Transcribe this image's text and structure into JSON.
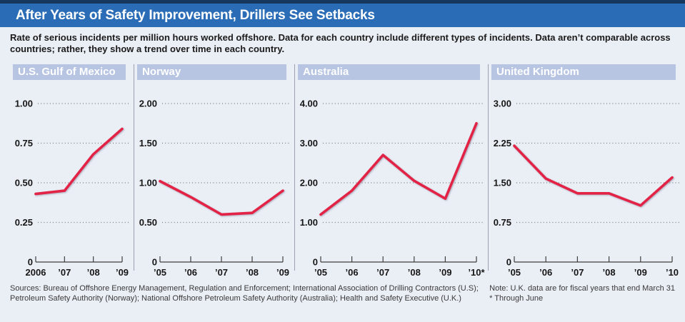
{
  "header": {
    "title": "After Years of Safety Improvement, Drillers See Setbacks",
    "subtitle": "Rate of serious incidents per million hours worked offshore. Data for each country include different types of incidents. Data aren’t comparable across countries; rather, they show a trend over time in each country."
  },
  "colors": {
    "top_strip": "#16375e",
    "title_bar": "#2a6db6",
    "panel_header_bg": "#b7c5e2",
    "background": "#eaeef5",
    "line": "#e32345",
    "divider": "#9aa2ae"
  },
  "chart_data": [
    {
      "type": "line",
      "title": "U.S. Gulf of Mexico",
      "categories": [
        "2006",
        "’07",
        "’08",
        "’09"
      ],
      "values": [
        0.43,
        0.45,
        0.68,
        0.84
      ],
      "ytick_labels": [
        "1.00",
        "0.75",
        "0.50",
        "0.25",
        "0"
      ],
      "ylim": [
        0,
        1.25
      ],
      "grid": "dotted-horizontal",
      "line_color": "#e32345"
    },
    {
      "type": "line",
      "title": "Norway",
      "categories": [
        "’05",
        "’06",
        "’07",
        "’08",
        "’09"
      ],
      "values": [
        1.02,
        0.82,
        0.6,
        0.62,
        0.9
      ],
      "ytick_labels": [
        "2.00",
        "1.50",
        "1.00",
        "0.50",
        "0"
      ],
      "ylim": [
        0,
        2.5
      ],
      "grid": "dotted-horizontal",
      "line_color": "#e32345"
    },
    {
      "type": "line",
      "title": "Australia",
      "categories": [
        "’05",
        "’06",
        "’07",
        "’08",
        "’09",
        "’10*"
      ],
      "values": [
        1.2,
        1.8,
        2.7,
        2.05,
        1.6,
        3.5
      ],
      "ytick_labels": [
        "4.00",
        "3.00",
        "2.00",
        "1.00",
        "0"
      ],
      "ylim": [
        0,
        5
      ],
      "grid": "dotted-horizontal",
      "line_color": "#e32345"
    },
    {
      "type": "line",
      "title": "United Kingdom",
      "categories": [
        "’05",
        "’06",
        "’07",
        "’08",
        "’09",
        "’10"
      ],
      "values": [
        2.2,
        1.58,
        1.3,
        1.3,
        1.07,
        1.6
      ],
      "ytick_labels": [
        "3.00",
        "2.25",
        "1.50",
        "0.75",
        "0"
      ],
      "ylim": [
        0,
        3.75
      ],
      "grid": "dotted-horizontal",
      "line_color": "#e32345"
    }
  ],
  "footer": {
    "sources_line1": "Sources: Bureau of Offshore Energy Management, Regulation and Enforcement; International Association of Drilling Contractors (U.S);",
    "sources_line2": "Petroleum Safety Authority (Norway); National Offshore Petroleum Safety Authority (Australia); Health and Safety Executive (U.K.)",
    "note_line1": "Note: U.K. data are for fiscal years that end March 31",
    "note_line2": "* Through June"
  }
}
